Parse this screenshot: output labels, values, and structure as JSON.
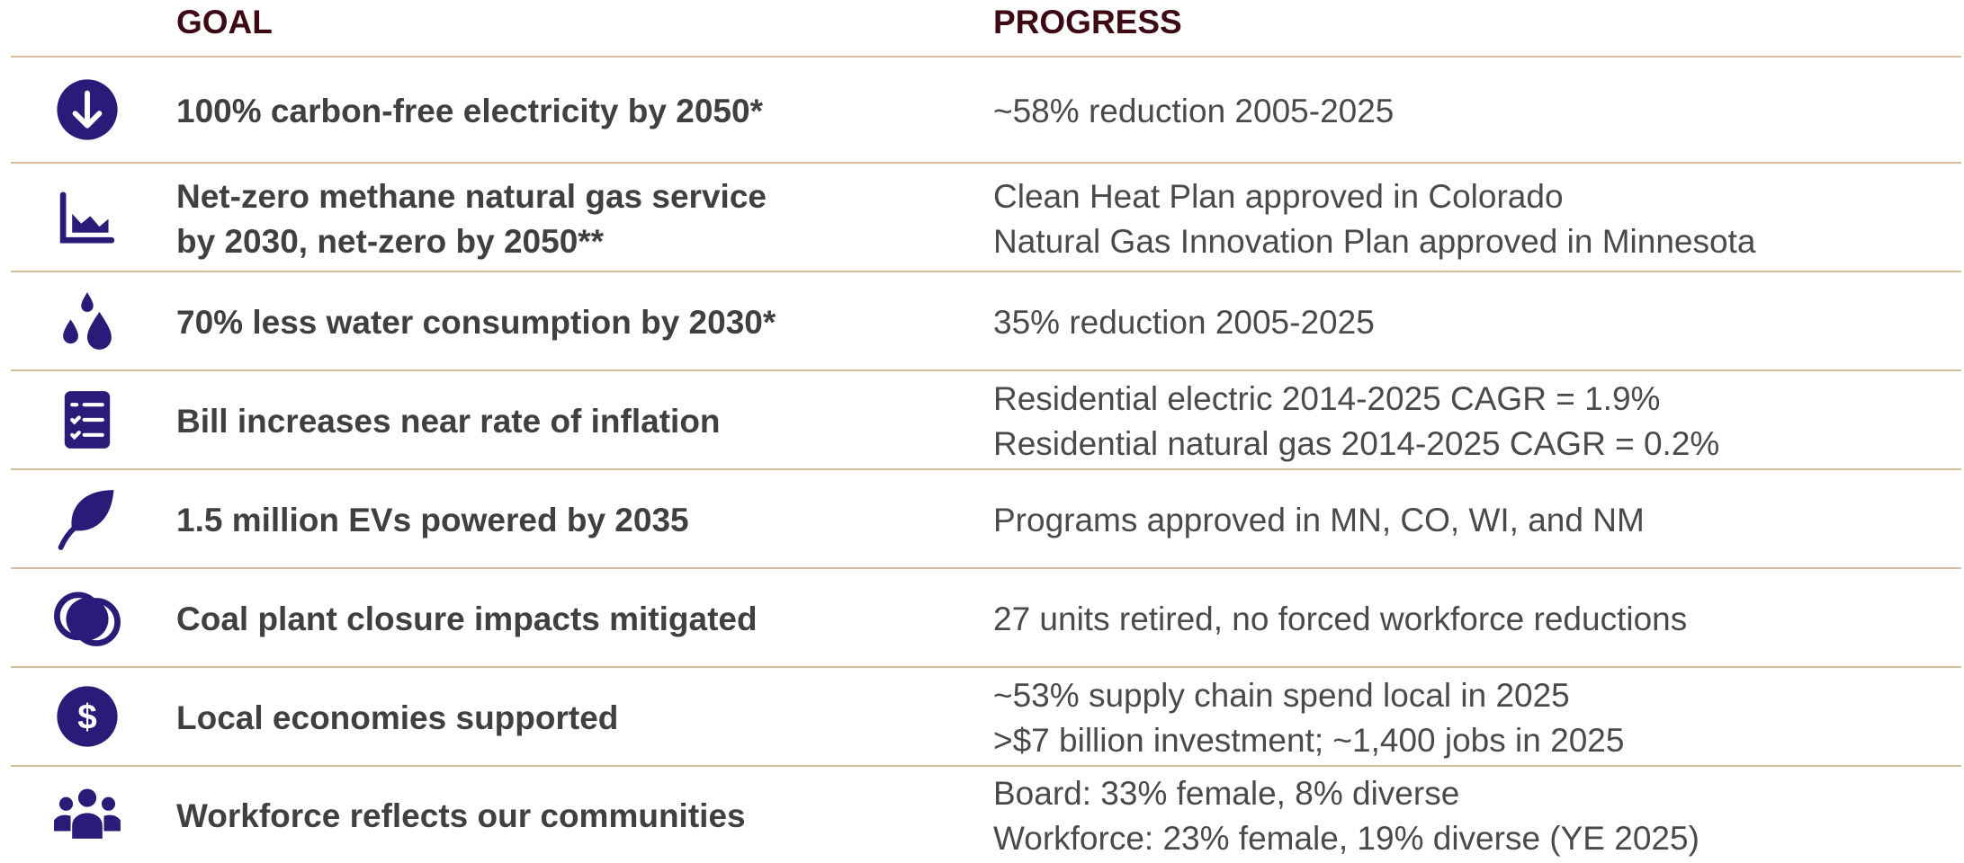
{
  "header": {
    "goal": "GOAL",
    "progress": "PROGRESS"
  },
  "rows": [
    {
      "goal": [
        "100% carbon-free electricity by 2050*"
      ],
      "progress": [
        "~58% reduction 2005-2025"
      ]
    },
    {
      "goal": [
        "Net-zero methane natural gas service",
        "by 2030, net-zero by 2050**"
      ],
      "progress": [
        "Clean Heat Plan approved in Colorado",
        "Natural Gas Innovation Plan approved in Minnesota"
      ]
    },
    {
      "goal": [
        "70% less water consumption by 2030*"
      ],
      "progress": [
        "35% reduction 2005-2025"
      ]
    },
    {
      "goal": [
        "Bill increases near rate of inflation"
      ],
      "progress": [
        "Residential electric 2014-2025 CAGR = 1.9%",
        "Residential natural gas 2014-2025 CAGR = 0.2%"
      ]
    },
    {
      "goal": [
        "1.5 million EVs powered by 2035"
      ],
      "progress": [
        "Programs approved in MN, CO, WI, and NM"
      ]
    },
    {
      "goal": [
        "Coal plant closure impacts mitigated"
      ],
      "progress": [
        "27 units retired, no forced workforce reductions"
      ]
    },
    {
      "goal": [
        "Local economies supported"
      ],
      "progress": [
        "~53% supply chain spend local in 2025",
        ">$7 billion investment; ~1,400 jobs in 2025"
      ]
    },
    {
      "goal": [
        "Workforce reflects our communities"
      ],
      "progress": [
        "Board: 33% female, 8% diverse",
        "Workforce: 23% female, 19% diverse (YE 2025)"
      ]
    }
  ]
}
